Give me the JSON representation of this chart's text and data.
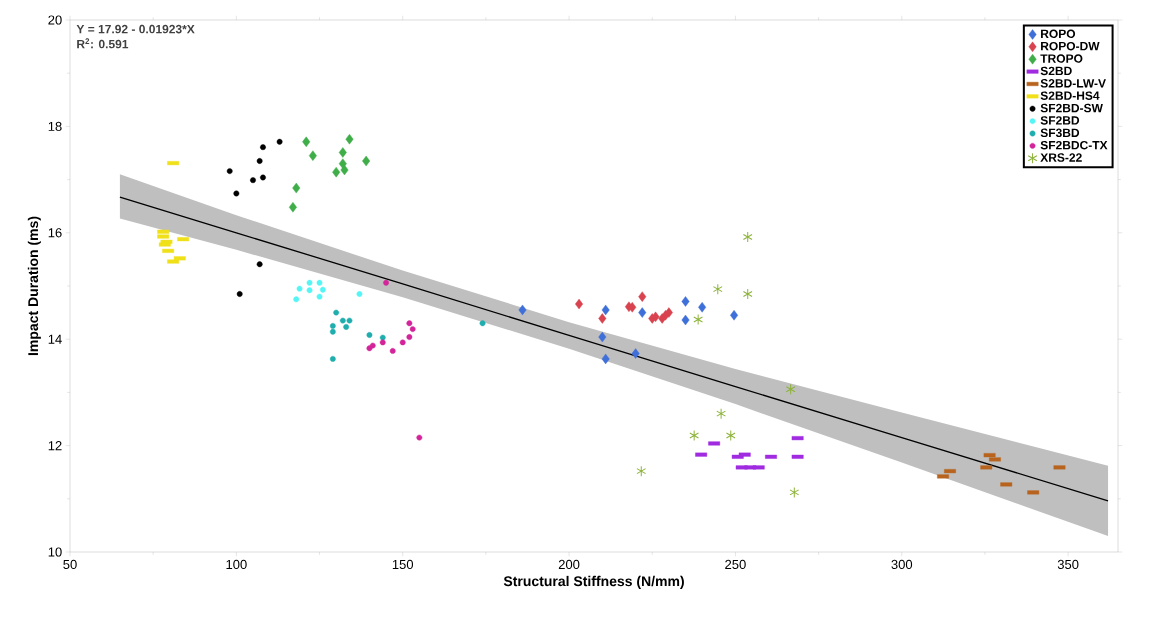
{
  "chart_data": {
    "type": "scatter",
    "xlabel": "Structural Stiffness (N/mm)",
    "ylabel": "Impact Duration (ms)",
    "xlim": [
      50,
      365
    ],
    "ylim": [
      10,
      20
    ],
    "xticks": [
      50,
      100,
      150,
      200,
      250,
      300,
      350
    ],
    "yticks": [
      10,
      12,
      14,
      16,
      18,
      20
    ],
    "legend": "top right",
    "annotations": [
      "Y = 17.92 - 0.01923*X",
      "R$^{2}$: 0.591"
    ],
    "series": [
      {
        "name": "ROPO",
        "color": "#3f6fd9",
        "marker": "diamond",
        "x": [
          186,
          211,
          210,
          211,
          220,
          222,
          235,
          235,
          240,
          249.6
        ],
        "values": [
          14.55,
          14.55,
          14.04,
          13.63,
          13.73,
          14.5,
          14.71,
          14.36,
          14.6,
          14.45
        ]
      },
      {
        "name": "ROPO-DW",
        "color": "#d9434f",
        "marker": "diamond",
        "x": [
          203,
          210,
          218,
          219,
          222,
          225,
          226,
          228,
          229,
          230
        ],
        "values": [
          14.66,
          14.39,
          14.61,
          14.6,
          14.8,
          14.39,
          14.42,
          14.39,
          14.45,
          14.5
        ]
      },
      {
        "name": "TROPO",
        "color": "#3fae49",
        "marker": "diamond",
        "x": [
          121,
          123,
          134,
          132,
          132,
          139,
          130,
          132.5,
          118,
          117
        ],
        "values": [
          17.71,
          17.45,
          17.76,
          17.51,
          17.3,
          17.35,
          17.14,
          17.18,
          16.84,
          16.48
        ]
      },
      {
        "name": "S2BD",
        "color": "#a02be0",
        "marker": "square",
        "x": [
          243.6,
          239.7,
          250.7,
          252.8,
          260.7,
          268.7,
          268.7,
          251.9,
          254.5,
          257
        ],
        "values": [
          12.04,
          11.83,
          11.79,
          11.83,
          11.79,
          12.14,
          11.79,
          11.59,
          11.59,
          11.59
        ]
      },
      {
        "name": "S2BD-LW-V",
        "color": "#b8641e",
        "marker": "square",
        "x": [
          326.4,
          328,
          314.5,
          312.4,
          325.4,
          331.4,
          339.5,
          347.4
        ],
        "values": [
          11.82,
          11.74,
          11.52,
          11.42,
          11.59,
          11.27,
          11.12,
          11.59
        ]
      },
      {
        "name": "S2BD-HS4",
        "color": "#f0e01a",
        "marker": "square",
        "x": [
          81,
          78,
          78,
          79,
          84,
          79.5,
          81,
          83,
          78.5
        ],
        "values": [
          17.31,
          16.02,
          15.93,
          15.83,
          15.88,
          15.66,
          15.46,
          15.52,
          15.78
        ]
      },
      {
        "name": "SF2BD-SW",
        "color": "#000000",
        "marker": "circle",
        "x": [
          98,
          100,
          105,
          107,
          108,
          108,
          113,
          107,
          101
        ],
        "values": [
          17.16,
          16.74,
          16.99,
          17.35,
          17.61,
          17.04,
          17.71,
          15.41,
          14.85
        ]
      },
      {
        "name": "SF2BD",
        "color": "#55f5f5",
        "marker": "circle",
        "x": [
          122,
          125,
          119,
          122,
          126,
          125,
          118,
          137
        ],
        "values": [
          15.06,
          15.06,
          14.95,
          14.92,
          14.93,
          14.8,
          14.75,
          14.85
        ]
      },
      {
        "name": "SF3BD",
        "color": "#1fadad",
        "marker": "circle",
        "x": [
          130,
          132,
          134,
          133,
          129,
          129,
          140,
          144,
          129,
          174
        ],
        "values": [
          14.5,
          14.35,
          14.35,
          14.23,
          14.25,
          14.14,
          14.08,
          14.03,
          13.63,
          14.3
        ]
      },
      {
        "name": "SF2BDC-TX",
        "color": "#d4249a",
        "marker": "circle",
        "x": [
          145,
          140,
          141,
          144,
          147,
          150,
          152,
          152,
          153,
          155
        ],
        "values": [
          15.06,
          13.83,
          13.88,
          13.94,
          13.78,
          13.94,
          14.04,
          14.3,
          14.19,
          12.15
        ]
      },
      {
        "name": "XRS-22",
        "color": "#8db33a",
        "marker": "cross",
        "x": [
          253.7,
          244.7,
          253.7,
          238.8,
          266.6,
          245.7,
          237.6,
          248.6,
          221.7,
          267.7
        ],
        "values": [
          15.92,
          14.94,
          14.85,
          14.37,
          13.06,
          12.6,
          12.19,
          12.19,
          11.52,
          11.12
        ]
      },
      {
        "type": "line",
        "color": "#000000",
        "x": [
          65,
          100,
          150,
          200,
          250,
          300,
          362
        ],
        "values": [
          16.67,
          16.0,
          15.04,
          14.07,
          13.11,
          12.15,
          10.96
        ],
        "lower": [
          16.27,
          15.68,
          14.79,
          13.82,
          12.78,
          11.68,
          10.3
        ],
        "upper": [
          17.1,
          16.33,
          15.29,
          14.32,
          13.44,
          12.62,
          11.62
        ]
      }
    ]
  }
}
